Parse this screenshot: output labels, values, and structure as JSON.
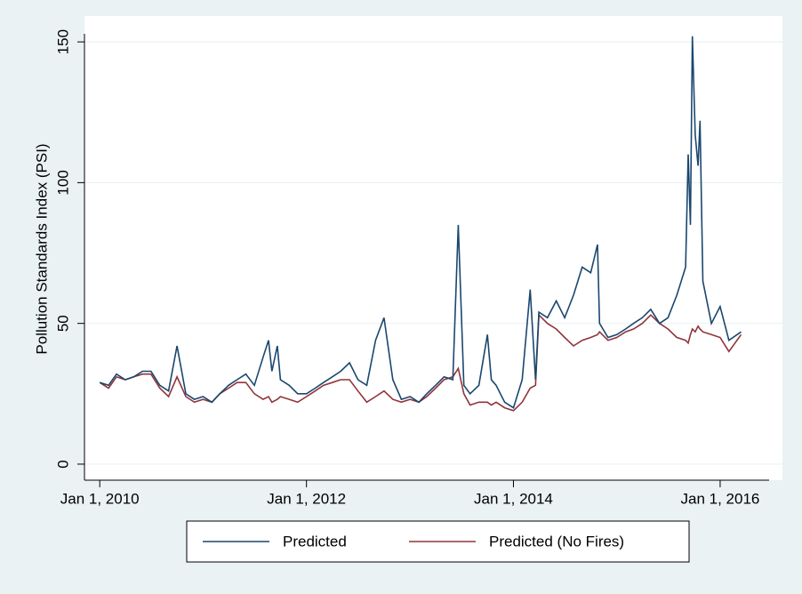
{
  "chart_data": {
    "type": "line",
    "y_label": "Pollution Standards Index (PSI)",
    "x": [
      "2010-01-01",
      "2010-02-01",
      "2010-03-01",
      "2010-04-01",
      "2010-05-01",
      "2010-06-01",
      "2010-07-01",
      "2010-08-01",
      "2010-09-01",
      "2010-10-01",
      "2010-11-01",
      "2010-12-01",
      "2011-01-01",
      "2011-02-01",
      "2011-03-01",
      "2011-04-01",
      "2011-05-01",
      "2011-06-01",
      "2011-07-01",
      "2011-08-01",
      "2011-08-20",
      "2011-09-01",
      "2011-09-20",
      "2011-10-01",
      "2011-11-01",
      "2011-12-01",
      "2012-01-01",
      "2012-02-01",
      "2012-03-01",
      "2012-04-01",
      "2012-05-01",
      "2012-06-01",
      "2012-07-01",
      "2012-08-01",
      "2012-09-01",
      "2012-10-01",
      "2012-11-01",
      "2012-12-01",
      "2013-01-01",
      "2013-02-01",
      "2013-03-01",
      "2013-04-01",
      "2013-05-01",
      "2013-06-01",
      "2013-06-20",
      "2013-07-10",
      "2013-08-01",
      "2013-09-01",
      "2013-10-01",
      "2013-10-15",
      "2013-11-01",
      "2013-12-01",
      "2014-01-01",
      "2014-02-01",
      "2014-03-01",
      "2014-03-20",
      "2014-04-01",
      "2014-05-01",
      "2014-06-01",
      "2014-07-01",
      "2014-08-01",
      "2014-09-01",
      "2014-10-01",
      "2014-10-25",
      "2014-11-01",
      "2014-12-01",
      "2015-01-01",
      "2015-02-01",
      "2015-03-01",
      "2015-04-01",
      "2015-05-01",
      "2015-06-01",
      "2015-07-01",
      "2015-08-01",
      "2015-09-01",
      "2015-09-10",
      "2015-09-18",
      "2015-09-25",
      "2015-10-05",
      "2015-10-15",
      "2015-10-22",
      "2015-11-01",
      "2015-12-01",
      "2016-01-01",
      "2016-02-01",
      "2016-03-15"
    ],
    "series": [
      {
        "name": "Predicted",
        "color": "#1a476f",
        "values": [
          29,
          28,
          32,
          30,
          31,
          33,
          33,
          28,
          26,
          42,
          25,
          23,
          24,
          22,
          25,
          28,
          30,
          32,
          28,
          38,
          44,
          33,
          42,
          30,
          28,
          25,
          25,
          27,
          29,
          31,
          33,
          36,
          30,
          28,
          44,
          52,
          30,
          23,
          24,
          22,
          25,
          28,
          31,
          30,
          85,
          28,
          25,
          28,
          46,
          30,
          28,
          22,
          20,
          30,
          62,
          30,
          54,
          52,
          58,
          52,
          60,
          70,
          68,
          78,
          50,
          45,
          46,
          48,
          50,
          52,
          55,
          50,
          52,
          60,
          70,
          110,
          85,
          152,
          117,
          106,
          122,
          65,
          50,
          56,
          44,
          47
        ]
      },
      {
        "name": "Predicted (No Fires)",
        "color": "#90353b",
        "values": [
          29,
          27,
          31,
          30,
          31,
          32,
          32,
          27,
          24,
          31,
          24,
          22,
          23,
          22,
          25,
          27,
          29,
          29,
          25,
          23,
          24,
          22,
          23,
          24,
          23,
          22,
          24,
          26,
          28,
          29,
          30,
          30,
          26,
          22,
          24,
          26,
          23,
          22,
          23,
          22,
          24,
          27,
          30,
          31,
          34,
          25,
          21,
          22,
          22,
          21,
          22,
          20,
          19,
          22,
          27,
          28,
          53,
          50,
          48,
          45,
          42,
          44,
          45,
          46,
          47,
          44,
          45,
          47,
          48,
          50,
          53,
          50,
          48,
          45,
          44,
          43,
          46,
          48,
          47,
          49,
          48,
          47,
          46,
          45,
          40,
          46
        ]
      }
    ],
    "xlim": [
      "2009-11-08",
      "2016-08-08"
    ],
    "xticks": [
      {
        "value": "2010-01-01",
        "label": "Jan 1, 2010"
      },
      {
        "value": "2012-01-01",
        "label": "Jan 1, 2012"
      },
      {
        "value": "2014-01-01",
        "label": "Jan 1, 2014"
      },
      {
        "value": "2016-01-01",
        "label": "Jan 1, 2016"
      }
    ],
    "ylim": [
      -5.7,
      159.2
    ],
    "yticks": [
      0,
      50,
      100,
      150
    ],
    "grid": true,
    "legend": "bottom"
  }
}
